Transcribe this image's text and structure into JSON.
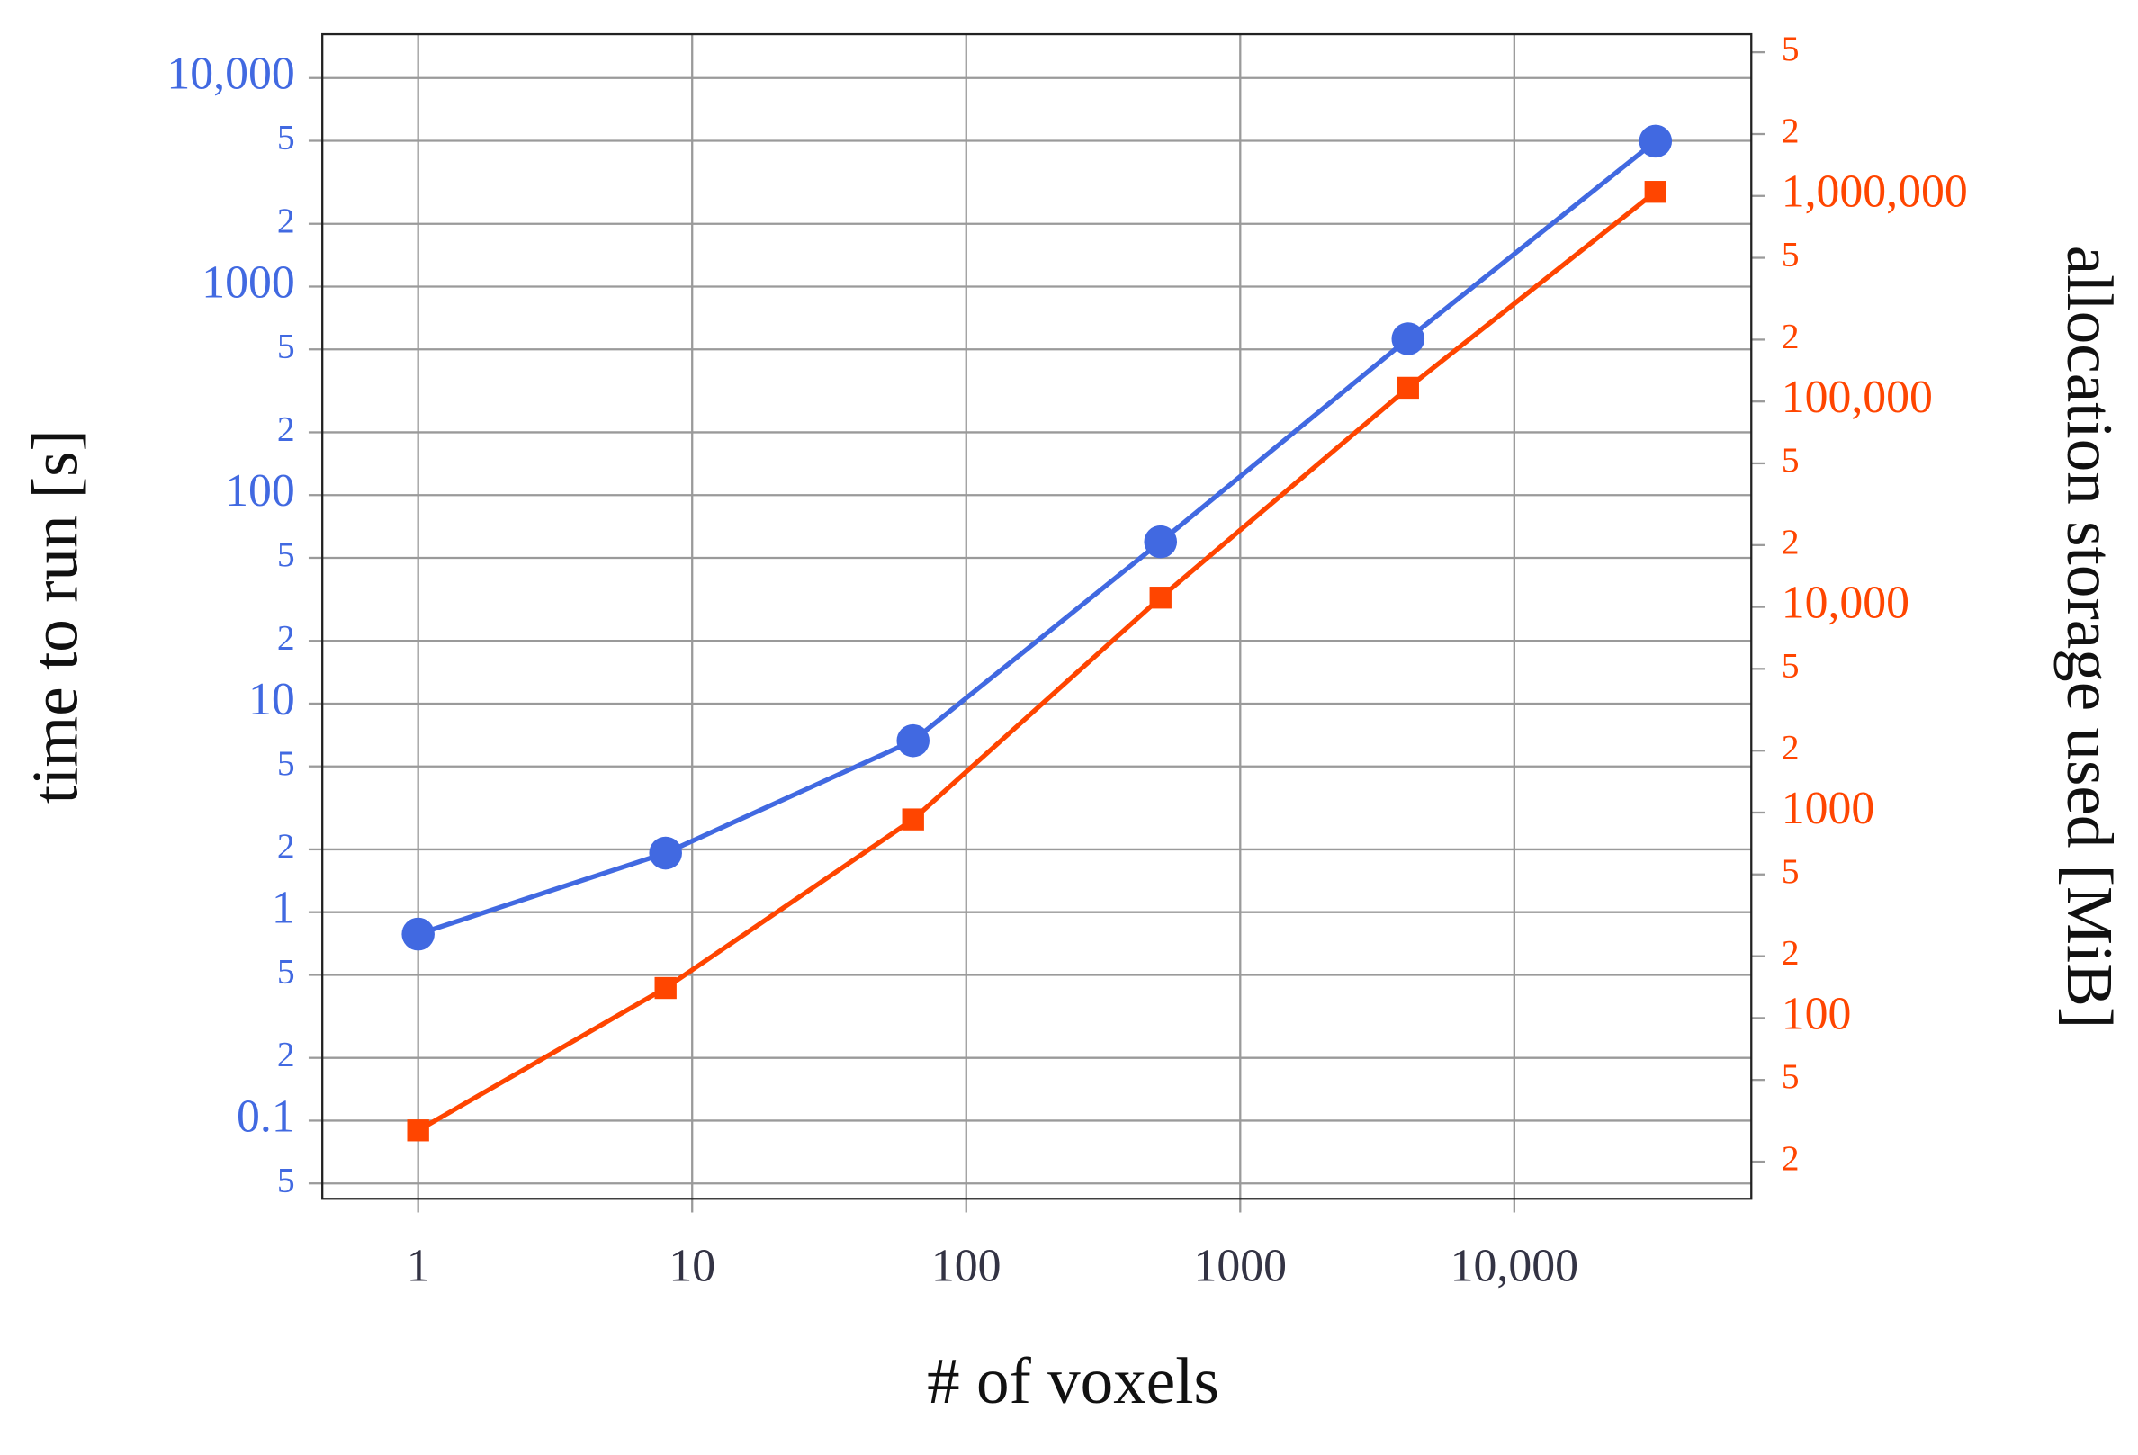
{
  "chart_data": {
    "type": "line",
    "xlabel": "# of voxels",
    "ylabel": "time to run [s]",
    "y2label": "allocation storage used [MiB]",
    "x": [
      1,
      8,
      64,
      512,
      4096,
      32768
    ],
    "series": [
      {
        "name": "time to run",
        "color": "#4169e1",
        "marker": "circle",
        "values": [
          0.785,
          1.92,
          6.64,
          59.7,
          562,
          4980
        ]
      },
      {
        "name": "allocation storage used",
        "color": "#ff4500",
        "marker": "square",
        "axis": "y2",
        "values": [
          28.4,
          140,
          926,
          11100,
          116600,
          1047000
        ]
      }
    ],
    "xscale": "log",
    "yscale": "log",
    "y2scale": "log",
    "xlim": [
      0.447,
      73282
    ],
    "ylim": [
      0.0422,
      16218
    ],
    "y2lim": [
      13.2,
      6120000
    ],
    "xticks": [
      1,
      10,
      100,
      1000,
      {
        "value": 10000,
        "label": "10,000"
      }
    ],
    "yticks": [
      {
        "value": 0.05,
        "label": "5"
      },
      0.1,
      {
        "value": 0.2,
        "label": "2"
      },
      {
        "value": 0.5,
        "label": "5"
      },
      1,
      2,
      5,
      10,
      {
        "value": 20,
        "label": "2"
      },
      {
        "value": 50,
        "label": "5"
      },
      100,
      {
        "value": 200,
        "label": "2"
      },
      {
        "value": 500,
        "label": "5"
      },
      1000,
      {
        "value": 2000,
        "label": "2"
      },
      {
        "value": 5000,
        "label": "5"
      },
      {
        "value": 10000,
        "label": "10,000"
      }
    ],
    "y2ticks": [
      {
        "value": 20,
        "label": "2"
      },
      {
        "value": 50,
        "label": "5"
      },
      100,
      {
        "value": 200,
        "label": "2"
      },
      {
        "value": 500,
        "label": "5"
      },
      1000,
      {
        "value": 2000,
        "label": "2"
      },
      {
        "value": 5000,
        "label": "5"
      },
      {
        "value": 10000,
        "label": "10,000"
      },
      {
        "value": 20000,
        "label": "2"
      },
      {
        "value": 50000,
        "label": "5"
      },
      {
        "value": 100000,
        "label": "100,000"
      },
      {
        "value": 200000,
        "label": "2"
      },
      {
        "value": 500000,
        "label": "5"
      },
      {
        "value": 1000000,
        "label": "1,000,000"
      },
      {
        "value": 2000000,
        "label": "2"
      },
      {
        "value": 5000000,
        "label": "5"
      }
    ],
    "y_tick_color": "#4169e1",
    "y2_tick_color": "#ff4500",
    "x_tick_color": "#333344",
    "grid": true
  }
}
